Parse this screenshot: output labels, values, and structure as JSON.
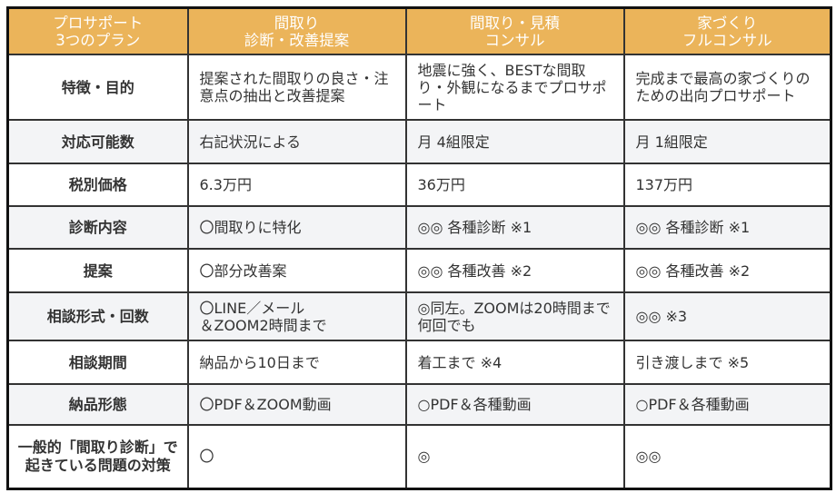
{
  "header": [
    "プロサポート\n3つのプラン",
    "間取り\n診断・改善提案",
    "間取り・見積\nコンサル",
    "家づくり\nフルコンサル"
  ],
  "rows": [
    {
      "label": "特徴・目的",
      "cells": [
        "提案された間取りの良さ・注意点の抽出と改善提案",
        "地震に強く、BESTな間取り・外観になるまでプロサポート",
        "完成まで最高の家づくりのための出向プロサポート"
      ]
    },
    {
      "label": "対応可能数",
      "cells": [
        "右記状況による",
        "月 4組限定",
        "月 1組限定"
      ]
    },
    {
      "label": "税別価格",
      "cells": [
        "6.3万円",
        "36万円",
        "137万円"
      ]
    },
    {
      "label": "診断内容",
      "cells": [
        "〇間取りに特化",
        "◎◎ 各種診断 ※1",
        "◎◎ 各種診断 ※1"
      ]
    },
    {
      "label": "提案",
      "cells": [
        "〇部分改善案",
        "◎◎ 各種改善 ※2",
        "◎◎ 各種改善 ※2"
      ]
    },
    {
      "label": "相談形式・回数",
      "cells": [
        "〇LINE／メール\n＆ZOOM2時間まで",
        "◎同左。ZOOMは20時間まで何回でも",
        "◎◎ ※3"
      ]
    },
    {
      "label": "相談期間",
      "cells": [
        "納品から10日まで",
        "着工まで ※4",
        "引き渡しまで ※5"
      ]
    },
    {
      "label": "納品形態",
      "cells": [
        "〇PDF＆ZOOM動画",
        "○PDF＆各種動画",
        "○PDF＆各種動画"
      ]
    },
    {
      "label": "一般的「間取り診断」で起きている問題の対策",
      "cells": [
        "〇",
        "◎",
        "◎◎"
      ]
    }
  ],
  "colors": {
    "header_bg": "#EBB45A",
    "alt_row_bg": "#F3F4F6"
  }
}
